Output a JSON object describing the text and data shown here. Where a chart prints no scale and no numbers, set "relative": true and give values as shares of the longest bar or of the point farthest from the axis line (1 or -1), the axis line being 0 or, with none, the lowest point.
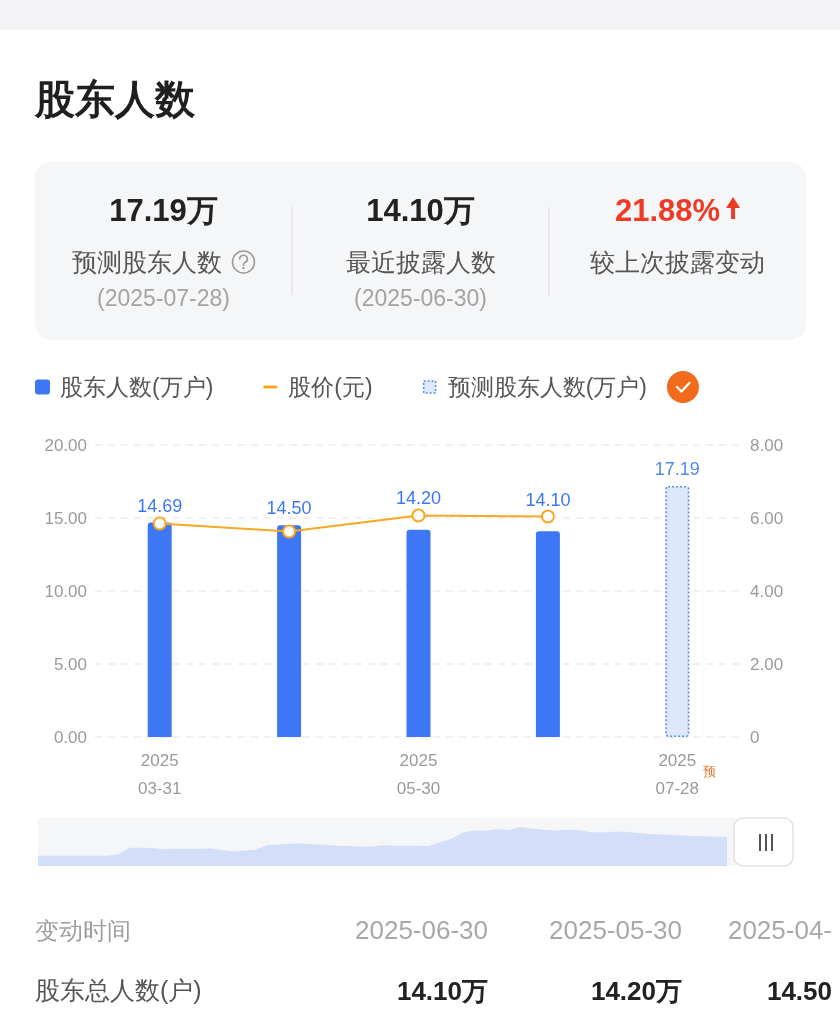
{
  "chart_data": [
    {
      "type": "other",
      "title": "股东人数",
      "annotations": [
        "17.19万",
        "14.10万",
        "21.88%",
        "预测股东人数",
        "最近披露人数",
        "较上次披露变动",
        "(2025-07-28)",
        "(2025-06-30)"
      ]
    },
    {
      "type": "bar",
      "categories": [
        "2025\n03-31",
        null,
        "2025\n05-30",
        null,
        "2025\n07-28"
      ],
      "series": [
        {
          "name": "股东人数(万户)",
          "type": "bar",
          "color": "#3d77f6",
          "values": [
            14.69,
            14.5,
            14.2,
            14.1,
            null
          ],
          "value_labels": [
            "14.69",
            "14.50",
            "14.20",
            "14.10",
            null
          ]
        },
        {
          "name": "股价(元)",
          "type": "line",
          "axis": "y2",
          "color": "#f7a823",
          "marker": "circle",
          "values": [
            5.85,
            5.63,
            6.07,
            6.04,
            null
          ]
        },
        {
          "name": "预测股东人数(万户)",
          "type": "bar",
          "color": "#dde8fb",
          "line_style": "dotted",
          "values": [
            null,
            null,
            null,
            null,
            17.19
          ],
          "value_labels": [
            null,
            null,
            null,
            null,
            "17.19"
          ]
        }
      ],
      "ylim": [
        0,
        20
      ],
      "yticks": [
        {
          "value": 0,
          "label": "0.00"
        },
        {
          "value": 5,
          "label": "5.00"
        },
        {
          "value": 10,
          "label": "10.00"
        },
        {
          "value": 15,
          "label": "15.00"
        },
        {
          "value": 20,
          "label": "20.00"
        }
      ],
      "y2lim": [
        0,
        8
      ],
      "y2ticks": [
        0,
        {
          "value": 2,
          "label": "2.00"
        },
        {
          "value": 4,
          "label": "4.00"
        },
        {
          "value": 6,
          "label": "6.00"
        },
        {
          "value": 8,
          "label": "8.00"
        }
      ],
      "grid": "y",
      "legend": "top left",
      "annotations": [
        "预"
      ]
    },
    {
      "type": "area",
      "relative": true,
      "categories": [
        null,
        null,
        null,
        null,
        null,
        null,
        null,
        null,
        null,
        null,
        null,
        null,
        null,
        null,
        null,
        null,
        null,
        null,
        null,
        null,
        null,
        null,
        null,
        null,
        null,
        null,
        null,
        null,
        null,
        null,
        null,
        null,
        null,
        null,
        null,
        null,
        null,
        null,
        null,
        null,
        null,
        null,
        null,
        null,
        null,
        null,
        null,
        null,
        null,
        null,
        null,
        null,
        null,
        null,
        null,
        null,
        null,
        null,
        null,
        null,
        null
      ],
      "values": [
        0.26,
        0.26,
        0.26,
        0.26,
        0.26,
        0.26,
        0.26,
        0.3,
        0.47,
        0.47,
        0.46,
        0.43,
        0.44,
        0.44,
        0.44,
        0.45,
        0.41,
        0.37,
        0.4,
        0.42,
        0.54,
        0.55,
        0.57,
        0.58,
        0.56,
        0.54,
        0.52,
        0.51,
        0.5,
        0.5,
        0.53,
        0.52,
        0.52,
        0.52,
        0.51,
        0.61,
        0.7,
        0.85,
        0.91,
        0.91,
        0.95,
        0.92,
        1,
        0.96,
        0.93,
        0.91,
        0.93,
        0.92,
        0.87,
        0.86,
        0.88,
        0.88,
        0.85,
        0.83,
        0.81,
        0.8,
        0.78,
        0.77,
        0.76,
        0.75,
        0.74
      ],
      "color": "#d3dff8"
    },
    {
      "type": "other",
      "xlabel": "变动时间",
      "ylabel": "股东总人数(户)",
      "annotations": [
        "2025-06-30",
        "2025-05-30",
        "2025-04-",
        "14.10万",
        "14.20万",
        "14.50"
      ]
    }
  ]
}
